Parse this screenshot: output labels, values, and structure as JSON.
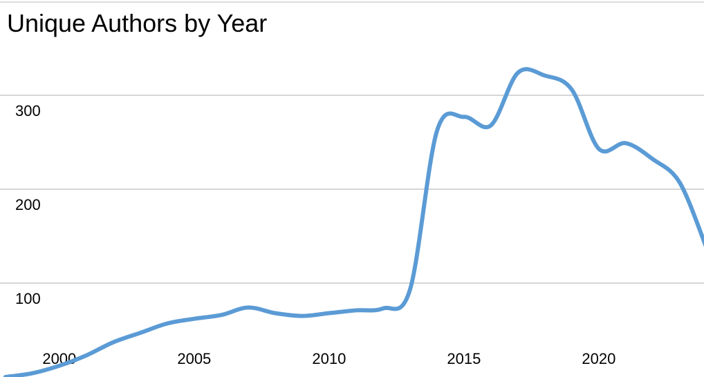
{
  "chart_data": {
    "type": "line",
    "title": "Unique Authors by Year",
    "x": [
      1998,
      1999,
      2000,
      2001,
      2002,
      2003,
      2004,
      2005,
      2006,
      2007,
      2008,
      2009,
      2010,
      2011,
      2012,
      2013,
      2014,
      2015,
      2016,
      2017,
      2018,
      2019,
      2020,
      2021,
      2022,
      2023,
      2024
    ],
    "series": [
      {
        "name": "Unique Authors",
        "color": "#5b9bd5",
        "values": [
          0,
          4,
          12,
          23,
          37,
          47,
          57,
          62,
          66,
          74,
          68,
          65,
          68,
          71,
          73,
          93,
          262,
          277,
          268,
          324,
          321,
          306,
          243,
          249,
          232,
          207,
          137
        ]
      }
    ],
    "xlim": [
      1997.8,
      2023.9
    ],
    "xticks": [
      2000,
      2005,
      2010,
      2015,
      2020
    ],
    "ylim": [
      0,
      400
    ],
    "yticks": [
      100,
      200,
      300
    ],
    "grid": true
  }
}
